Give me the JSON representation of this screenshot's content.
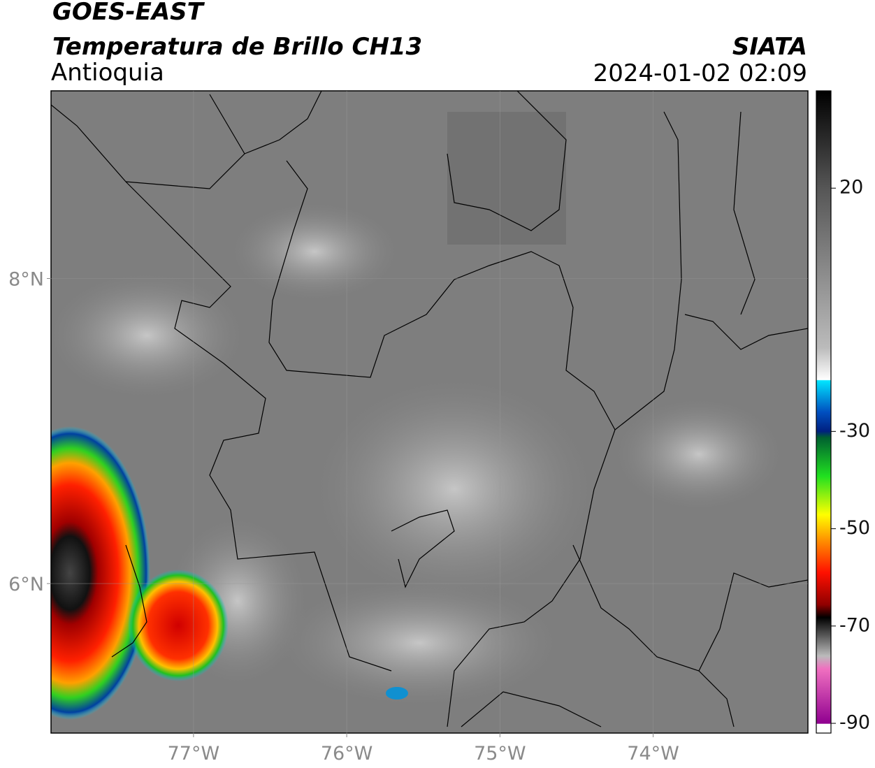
{
  "header": {
    "title": "GOES-EAST",
    "subtitle": "Temperatura de Brillo CH13",
    "region": "Antioquia",
    "source": "SIATA",
    "datetime": "2024-01-02 02:09"
  },
  "map": {
    "xlim": [
      -77.93,
      -72.99
    ],
    "ylim": [
      5.02,
      9.23
    ],
    "yticks": [
      {
        "value": 8,
        "label": "8°N"
      },
      {
        "value": 6,
        "label": "6°N"
      }
    ],
    "xticks": [
      {
        "value": -77,
        "label": "77°W"
      },
      {
        "value": -76,
        "label": "76°W"
      },
      {
        "value": -75,
        "label": "75°W"
      },
      {
        "value": -74,
        "label": "74°W"
      }
    ],
    "grid": true
  },
  "colorbar": {
    "lim": [
      -92,
      40
    ],
    "ticks": [
      20,
      -30,
      -50,
      -70,
      -90
    ]
  }
}
